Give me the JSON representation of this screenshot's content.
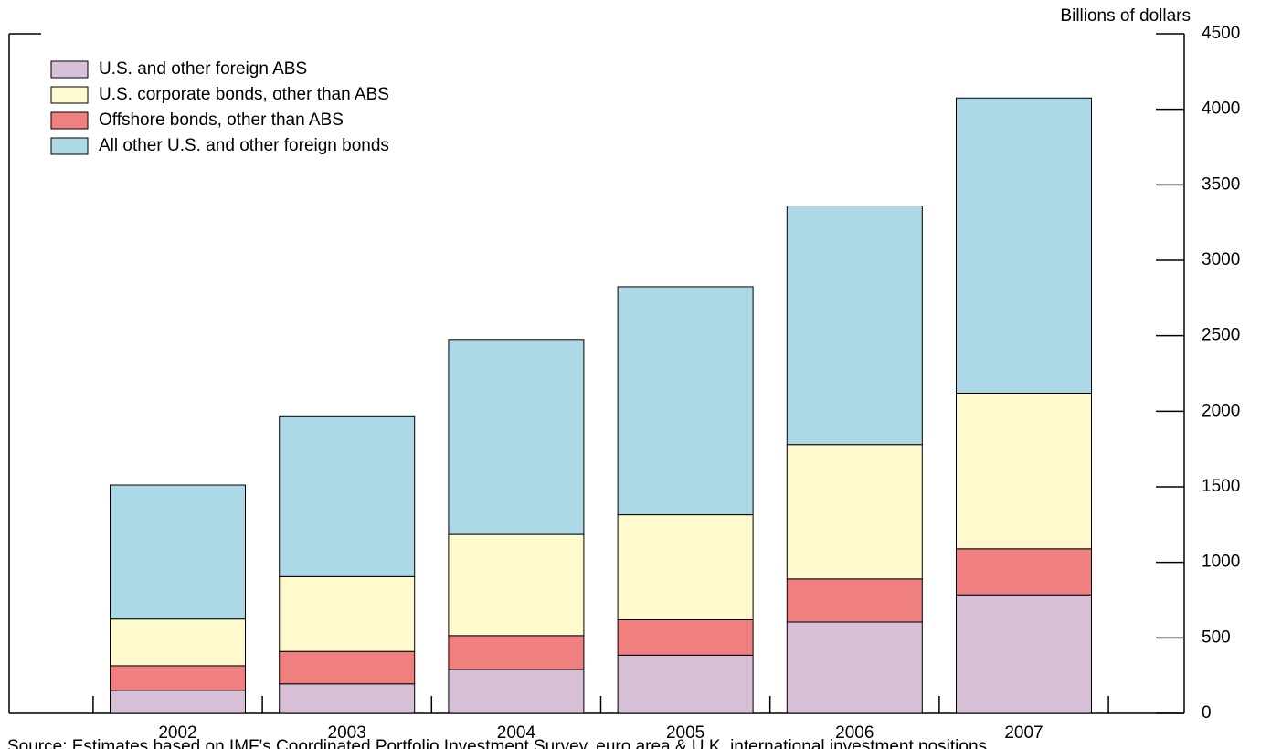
{
  "chart_data": {
    "type": "bar",
    "stacked": true,
    "y_axis_label": "Billions of dollars",
    "note": "Source: Estimates based on IMF's Coordinated Portfolio Investment Survey, euro area & U.K. international investment positions.",
    "categories": [
      "2002",
      "2003",
      "2004",
      "2005",
      "2006",
      "2007"
    ],
    "series": [
      {
        "name": "U.S. and other foreign ABS",
        "color": "#d8bfd8",
        "values": [
          150,
          195,
          290,
          385,
          605,
          785
        ]
      },
      {
        "name": "U.S. corporate bonds, other than ABS",
        "color": "#fffacd",
        "values": [
          310,
          495,
          670,
          695,
          890,
          1030
        ]
      },
      {
        "name": "Offshore bonds, other than ABS",
        "color": "#f08080",
        "values": [
          165,
          215,
          225,
          235,
          285,
          305
        ]
      },
      {
        "name": "All other U.S. and other foreign bonds",
        "color": "#add8e6",
        "values": [
          887,
          1065,
          1290,
          1510,
          1580,
          1955
        ]
      }
    ],
    "stack_order": [
      0,
      2,
      1,
      3
    ],
    "ylim": [
      0,
      4500
    ],
    "yticks": [
      0,
      500,
      1000,
      1500,
      2000,
      2500,
      3000,
      3500,
      4000,
      4500
    ],
    "legend": "upper left"
  }
}
